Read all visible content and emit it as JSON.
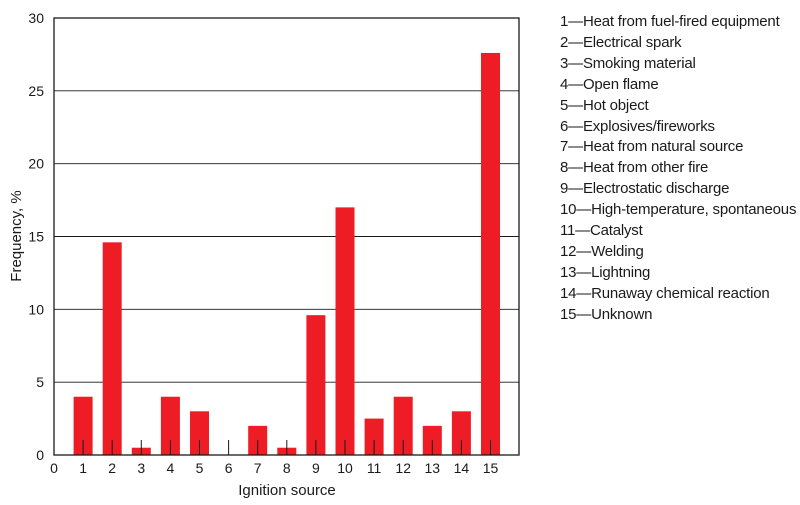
{
  "chart_data": {
    "type": "bar",
    "title": "",
    "xlabel": "Ignition source",
    "ylabel": "Frequency, %",
    "x_ticks": [
      "0",
      "1",
      "2",
      "3",
      "4",
      "5",
      "6",
      "7",
      "8",
      "9",
      "10",
      "11",
      "12",
      "13",
      "14",
      "15"
    ],
    "y_ticks": [
      "0",
      "5",
      "10",
      "15",
      "20",
      "25",
      "30"
    ],
    "ylim": [
      0,
      30
    ],
    "grid": "horizontal",
    "legend_position": "right",
    "bar_color": "#ee1c25",
    "categories": [
      1,
      2,
      3,
      4,
      5,
      6,
      7,
      8,
      9,
      10,
      11,
      12,
      13,
      14,
      15
    ],
    "values": [
      4,
      14.6,
      0.5,
      4,
      3,
      0,
      2,
      0.5,
      9.6,
      17,
      2.5,
      4,
      2,
      3,
      27.6
    ],
    "legend": [
      "1—Heat from fuel-fired equipment",
      "2—Electrical spark",
      "3—Smoking material",
      "4—Open flame",
      "5—Hot object",
      "6—Explosives/fireworks",
      "7—Heat from natural source",
      "8—Heat from other fire",
      "9—Electrostatic discharge",
      "10—High-temperature, spontaneous",
      "11—Catalyst",
      "12—Welding",
      "13—Lightning",
      "14—Runaway chemical reaction",
      "15—Unknown"
    ]
  }
}
